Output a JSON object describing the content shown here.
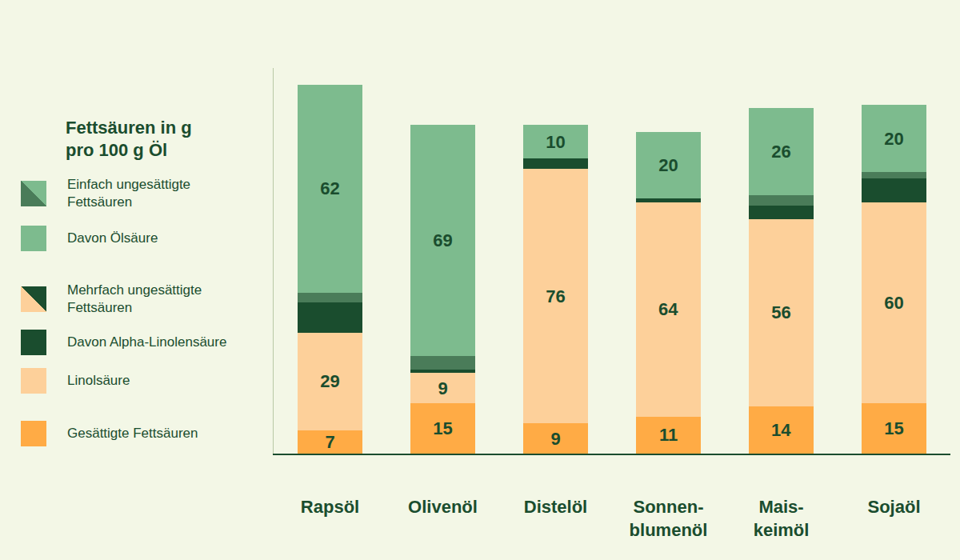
{
  "chart_data": {
    "type": "bar",
    "stacked": true,
    "data_labels": true,
    "tick_labels": "x",
    "grid": false,
    "legend": "left",
    "legend_title": "Fettsäuren in g pro 100 g Öl",
    "legend_entries": [
      {
        "name": "Einfach ungesättigte Fettsäuren",
        "colors": [
          "#4a7c59",
          "#7dbb8e"
        ]
      },
      {
        "name": "Davon Ölsäure",
        "colors": [
          "#7dbb8e"
        ]
      },
      {
        "name": "Mehrfach ungesättigte Fettsäuren",
        "colors": [
          "#fdd09a",
          "#1a4d2e"
        ]
      },
      {
        "name": "Davon Alpha-Linolensäure",
        "colors": [
          "#1a4d2e"
        ]
      },
      {
        "name": "Linolsäure",
        "colors": [
          "#fdd09a"
        ]
      },
      {
        "name": "Gesättigte Fettsäuren",
        "colors": [
          "#ffab45"
        ]
      }
    ],
    "categories": [
      "Rapsöl",
      "Olivenöl",
      "Distelöl",
      "Sonnen-blumenöl",
      "Mais-keimöl",
      "Sojaöl"
    ],
    "ylim": [
      0,
      115
    ],
    "series": [
      {
        "name": "Gesättigte Fettsäuren",
        "color": "#ffab45",
        "values": [
          7,
          15,
          9,
          11,
          14,
          15
        ]
      },
      {
        "name": "Linolsäure",
        "color": "#fdd09a",
        "values": [
          29,
          9,
          76,
          64,
          56,
          60
        ]
      },
      {
        "name": "Davon Alpha-Linolensäure",
        "color": "#1a4d2e",
        "values": [
          9,
          1,
          3,
          1,
          4,
          7
        ],
        "data_labels": false
      },
      {
        "name": "Einfach ungesättigte Fettsäuren",
        "color": "#4a7c59",
        "values": [
          3,
          4,
          0,
          0,
          3,
          2
        ],
        "data_labels": false
      },
      {
        "name": "Davon Ölsäure",
        "color": "#7dbb8e",
        "values": [
          62,
          69,
          10,
          20,
          26,
          20
        ]
      }
    ]
  }
}
